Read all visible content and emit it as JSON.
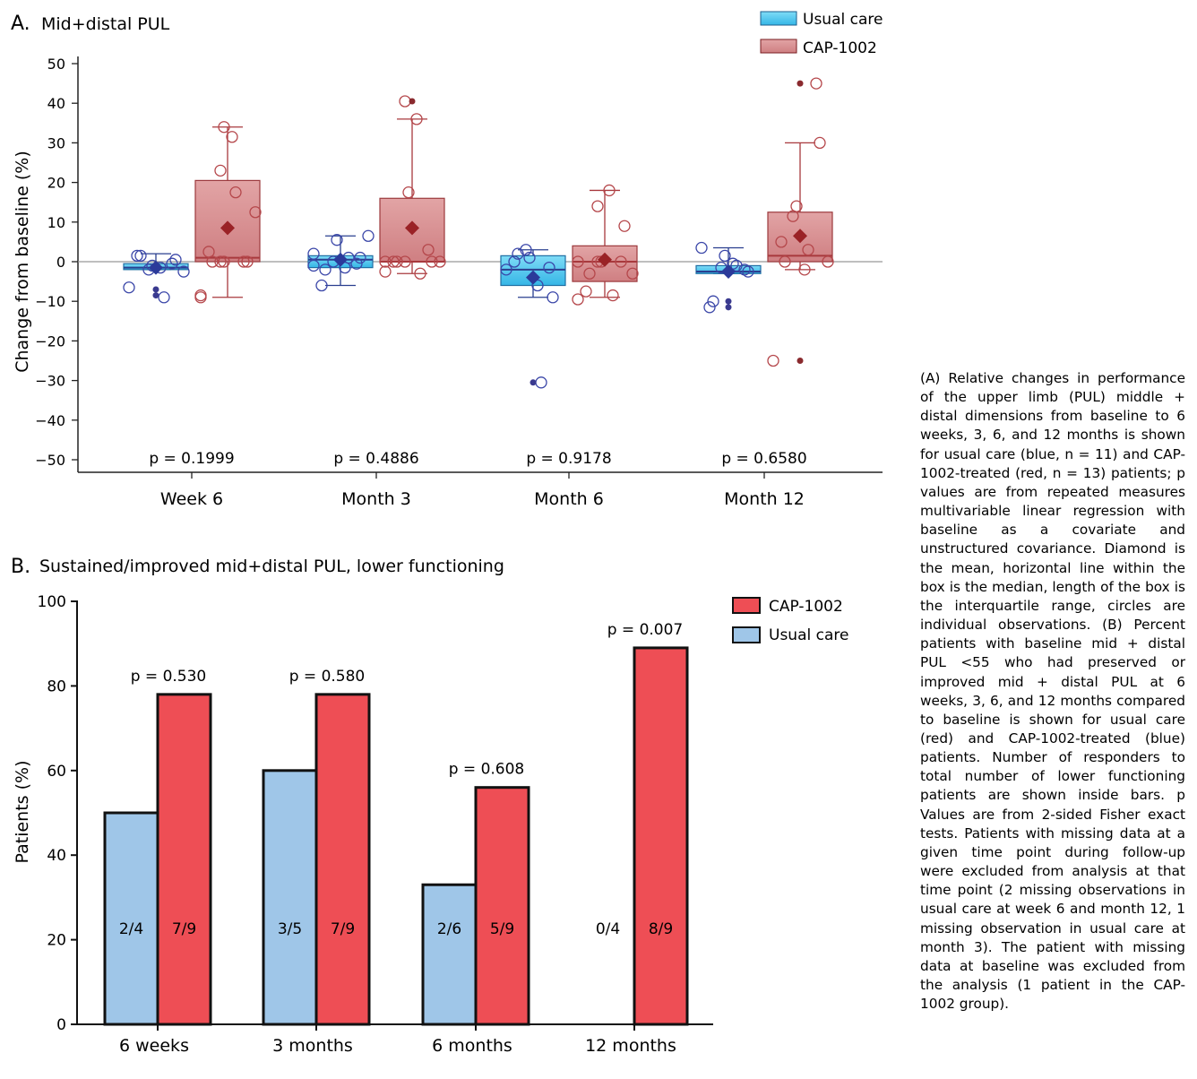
{
  "panel_a": {
    "letter": "A.",
    "title": "Mid+distal PUL",
    "ylabel": "Change from baseline (%)",
    "legend": [
      {
        "label": "Usual care",
        "color": "#4fc6ee",
        "edge": "#1e5f8e"
      },
      {
        "label": "CAP-1002",
        "color": "#d98a8c",
        "edge": "#7a1e22"
      }
    ]
  },
  "panel_b": {
    "letter": "B.",
    "title": "Sustained/improved mid+distal PUL, lower functioning",
    "ylabel": "Patients (%)",
    "legend": [
      {
        "label": "CAP-1002",
        "color": "#ee4e55"
      },
      {
        "label": "Usual care",
        "color": "#9fc6e8"
      }
    ]
  },
  "caption": "(A) Relative changes in performance of the upper limb (PUL) middle + distal dimensions from baseline to 6 weeks, 3, 6, and 12 months is shown for usual care (blue, n = 11) and CAP-1002-treated (red, n = 13) patients; p values are from repeated measures multivariable linear regression with baseline as a covariate and unstructured covariance. Diamond is the mean, horizontal line within the box is the median, length of the box is the interquartile range, circles are individual observations. (B) Percent patients with baseline mid + distal PUL <55 who had preserved or improved mid + distal PUL at 6 weeks, 3, 6, and 12 months compared to baseline is shown for usual care (red) and CAP-1002-treated (blue) patients. Number of responders to total number of lower functioning patients are shown inside bars. p Values are from 2-sided Fisher exact tests. Patients with missing data at a given time point during follow-up were excluded from analysis at that time point (2 missing observations in usual care at week 6 and month 12, 1 missing observation in usual care at month 3). The patient with missing data at baseline was excluded from the analysis (1 patient in the CAP-1002 group).",
  "chart_data": [
    {
      "type": "box",
      "title": "Mid+distal PUL",
      "ylabel": "Change from baseline (%)",
      "ylim": [
        -50,
        50
      ],
      "yticks": [
        50,
        40,
        30,
        20,
        10,
        0,
        -10,
        -20,
        -30,
        -40,
        -50
      ],
      "ytick_labels": [
        "50",
        "40",
        "30",
        "20",
        "10",
        "0",
        "−10",
        "−20",
        "−30",
        "−40",
        "−50"
      ],
      "categories": [
        "Week 6",
        "Month 3",
        "Month 6",
        "Month 12"
      ],
      "p_values": [
        "p = 0.1999",
        "p = 0.4886",
        "p = 0.9178",
        "p = 0.6580"
      ],
      "series": [
        {
          "name": "Usual care",
          "boxes": [
            {
              "q1": -2,
              "median": -1.5,
              "q3": -0.5,
              "whisker_low": -2,
              "whisker_high": 2,
              "mean": -1.5,
              "points": [
                -6.5,
                -2,
                -1,
                -0.5,
                0.5,
                1.5,
                1.5,
                -1.5,
                -9,
                -2.5
              ],
              "outliers": [
                -7,
                -8.5
              ]
            },
            {
              "q1": -1.5,
              "median": 0.5,
              "q3": 1.5,
              "whisker_low": -6,
              "whisker_high": 6.5,
              "mean": 0.5,
              "points": [
                -1,
                0,
                5.5,
                -0.5,
                1,
                -6,
                -2,
                -1.5,
                1,
                6.5,
                2
              ],
              "outliers": []
            },
            {
              "q1": -6,
              "median": -2,
              "q3": 1.5,
              "whisker_low": -9,
              "whisker_high": 3,
              "mean": -4,
              "points": [
                -2,
                3,
                1,
                -1.5,
                -9,
                0,
                2,
                -6,
                -30.5
              ],
              "outliers": [
                -30.5
              ]
            },
            {
              "q1": -3,
              "median": -2.5,
              "q3": -1,
              "whisker_low": -3,
              "whisker_high": 3.5,
              "mean": -2.5,
              "points": [
                3.5,
                -1.5,
                1.5,
                -2,
                -2.5,
                -11.5,
                -10,
                -0.5,
                -1
              ],
              "outliers": [
                -10,
                -11.5
              ]
            }
          ]
        },
        {
          "name": "CAP-1002",
          "boxes": [
            {
              "q1": 0,
              "median": 1,
              "q3": 20.5,
              "whisker_low": -9,
              "whisker_high": 34,
              "mean": 8.5,
              "points": [
                -8.5,
                23,
                34,
                0,
                0,
                2.5,
                0,
                31.5,
                17.5,
                12.5,
                -9,
                0,
                0
              ],
              "outliers": []
            },
            {
              "q1": 0,
              "median": 0,
              "q3": 16,
              "whisker_low": -3,
              "whisker_high": 36,
              "mean": 8.5,
              "points": [
                -2.5,
                40.5,
                17.5,
                3,
                0,
                0,
                0,
                36,
                -3,
                0,
                0,
                0
              ],
              "outliers": [
                40.5
              ]
            },
            {
              "q1": -5,
              "median": 0,
              "q3": 4,
              "whisker_low": -9,
              "whisker_high": 18,
              "mean": 0.5,
              "points": [
                -9.5,
                14,
                0,
                0,
                9,
                -7.5,
                -3,
                18,
                -8.5,
                -3,
                0,
                0
              ],
              "outliers": []
            },
            {
              "q1": 0,
              "median": 1.5,
              "q3": 12.5,
              "whisker_low": -2,
              "whisker_high": 30,
              "mean": 6.5,
              "points": [
                -25,
                11.5,
                14,
                45,
                30,
                5,
                0,
                -2,
                3,
                0
              ],
              "outliers": [
                45,
                -25
              ]
            }
          ]
        }
      ]
    },
    {
      "type": "bar",
      "title": "Sustained/improved mid+distal PUL, lower functioning",
      "ylabel": "Patients (%)",
      "ylim": [
        0,
        100
      ],
      "yticks": [
        0,
        20,
        40,
        60,
        80,
        100
      ],
      "categories": [
        "6 weeks",
        "3 months",
        "6 months",
        "12 months"
      ],
      "p_values": [
        "p = 0.530",
        "p = 0.580",
        "p = 0.608",
        "p = 0.007"
      ],
      "series": [
        {
          "name": "Usual care",
          "values": [
            50,
            60,
            33,
            0
          ],
          "labels": [
            "2/4",
            "3/5",
            "2/6",
            "0/4"
          ]
        },
        {
          "name": "CAP-1002",
          "values": [
            78,
            78,
            56,
            89
          ],
          "labels": [
            "7/9",
            "7/9",
            "5/9",
            "8/9"
          ]
        }
      ]
    }
  ]
}
